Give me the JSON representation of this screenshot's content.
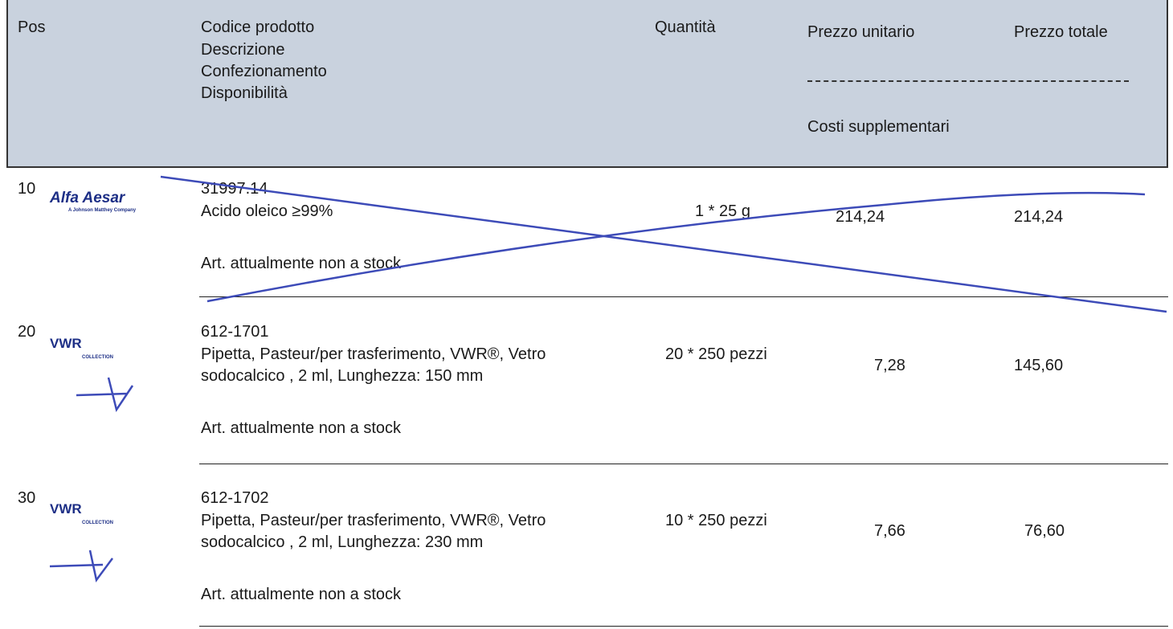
{
  "header": {
    "pos": "Pos",
    "product": [
      "Codice prodotto",
      "Descrizione",
      "Confezionamento",
      "Disponibilità"
    ],
    "quantity": "Quantità",
    "unit_price": "Prezzo unitario",
    "total_price": "Prezzo totale",
    "extra_costs": "Costi supplementari"
  },
  "items": [
    {
      "pos": "10",
      "logo": {
        "name": "Alfa Aesar",
        "tagline": "A Johnson Matthey Company"
      },
      "code": "31997.14",
      "description": [
        "Acido oleico ≥99%"
      ],
      "availability": "Art. attualmente non a stock",
      "quantity": "1 * 25 g",
      "unit_price": "214,24",
      "total_price": "214,24"
    },
    {
      "pos": "20",
      "logo": {
        "name": "VWR",
        "tagline": "COLLECTION"
      },
      "code": "612-1701",
      "description": [
        "Pipetta, Pasteur/per trasferimento, VWR®, Vetro",
        "sodocalcico , 2 ml, Lunghezza: 150 mm"
      ],
      "availability": "Art. attualmente non a stock",
      "quantity": "20 * 250 pezzi",
      "unit_price": "7,28",
      "total_price": "145,60"
    },
    {
      "pos": "30",
      "logo": {
        "name": "VWR",
        "tagline": "COLLECTION"
      },
      "code": "612-1702",
      "description": [
        "Pipetta, Pasteur/per trasferimento, VWR®, Vetro",
        "sodocalcico , 2 ml, Lunghezza: 230 mm"
      ],
      "availability": "Art. attualmente non a stock",
      "quantity": "10 * 250 pezzi",
      "unit_price": "7,66",
      "total_price": "76,60"
    }
  ]
}
